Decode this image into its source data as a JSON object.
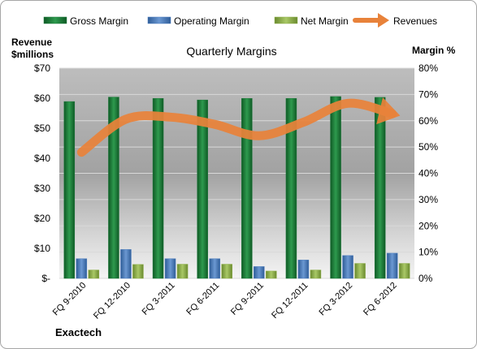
{
  "chart_data": {
    "type": "bar",
    "title": "Quarterly Margins",
    "company": "Exactech",
    "left_axis_title_line1": "Revenue",
    "left_axis_title_line2": "$millions",
    "right_axis_title": "Margin %",
    "categories": [
      "FQ 9-2010",
      "FQ 12-2010",
      "FQ 3-2011",
      "FQ 6-2011",
      "FQ 9-2011",
      "FQ 12-2011",
      "FQ 3-2012",
      "FQ 6-2012"
    ],
    "left_ticks": [
      "$-",
      "$10",
      "$20",
      "$30",
      "$40",
      "$50",
      "$60",
      "$70"
    ],
    "right_ticks": [
      "0%",
      "10%",
      "20%",
      "30%",
      "40%",
      "50%",
      "60%",
      "70%",
      "80%"
    ],
    "ylim_left": [
      0,
      70
    ],
    "ylim_right": [
      0,
      80
    ],
    "series": [
      {
        "name": "Gross Margin",
        "kind": "bar",
        "axis": "right",
        "color": "#1e7a3c",
        "values": [
          67.3,
          69.0,
          68.5,
          67.9,
          68.5,
          68.5,
          69.2,
          68.9
        ]
      },
      {
        "name": "Operating Margin",
        "kind": "bar",
        "axis": "right",
        "color": "#4f7fbf",
        "values": [
          7.5,
          11.0,
          7.5,
          7.5,
          4.5,
          7.0,
          8.7,
          9.6
        ]
      },
      {
        "name": "Net Margin",
        "kind": "bar",
        "axis": "right",
        "color": "#8fb04a",
        "values": [
          3.2,
          5.3,
          5.4,
          5.4,
          2.8,
          3.2,
          5.7,
          5.7
        ]
      },
      {
        "name": "Revenues",
        "kind": "line",
        "axis": "left",
        "color": "#e8823a",
        "values": [
          42.0,
          53.0,
          53.7,
          51.3,
          47.5,
          52.0,
          58.3,
          54.8
        ]
      }
    ],
    "grid": true,
    "legend_position": "top"
  }
}
